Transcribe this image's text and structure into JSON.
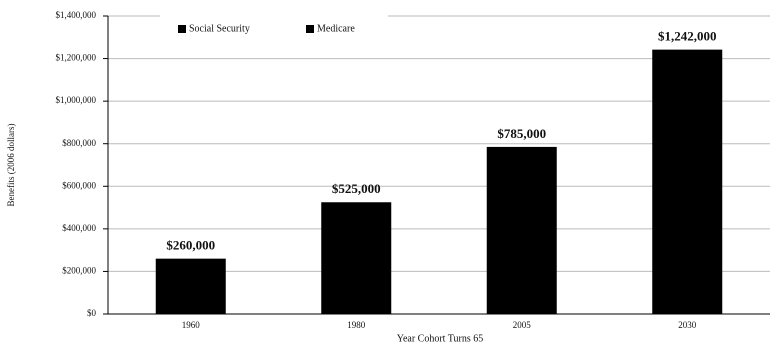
{
  "chart_data": {
    "type": "bar",
    "categories": [
      "1960",
      "1980",
      "2005",
      "2030"
    ],
    "values": [
      260000,
      525000,
      785000,
      1242000
    ],
    "value_labels": [
      "$260,000",
      "$525,000",
      "$785,000",
      "$1,242,000"
    ],
    "color": "#000000",
    "legend": [
      "Social Security",
      "Medicare"
    ],
    "y_label": "Benefits (2006 dollars)",
    "x_label": "Year Cohort Turns 65",
    "ylim": [
      0,
      1400000
    ],
    "yticks": [
      {
        "value": 0,
        "label": "$0"
      },
      {
        "value": 200000,
        "label": "$200,000"
      },
      {
        "value": 400000,
        "label": "$400,000"
      },
      {
        "value": 600000,
        "label": "$600,000"
      },
      {
        "value": 800000,
        "label": "$800,000"
      },
      {
        "value": 1000000,
        "label": "$1,000,000"
      },
      {
        "value": 1200000,
        "label": "$1,200,000"
      },
      {
        "value": 1400000,
        "label": "$1,400,000"
      }
    ],
    "grid": true
  }
}
